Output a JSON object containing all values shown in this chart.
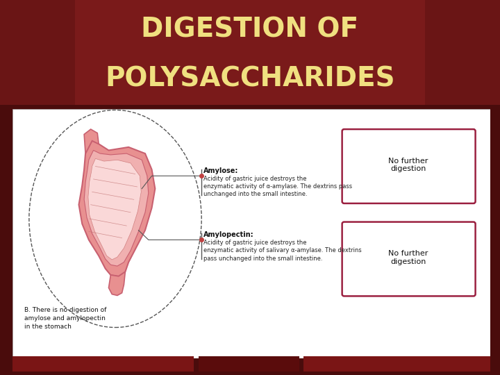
{
  "title_line1": "DIGESTION OF",
  "title_line2": "POLYSACCHARIDES",
  "title_color": "#F0E080",
  "title_fontsize": 28,
  "bg_color": "#4a0c0c",
  "box_border_color": "#9b2040",
  "amylose_label": "Amylose:",
  "amylose_text": "Acidity of gastric juice destroys the\nenzymatic activity of α-amylase. The dextrins pass\nunchanged into the small intestine.",
  "amylopectin_label": "Amylopectin:",
  "amylopectin_text": "Acidity of gastric juice destroys the\nenzymatic activity of salivary α-amylase. The dextrins\npass unchanged into the small intestine.",
  "nofurther": "No further\ndigestion",
  "bottom_note": "B. There is no digestion of\namylose and amylopectin\nin the stomach",
  "stomach_pink": "#e89090",
  "stomach_dark": "#c86070",
  "stomach_light": "#f0b0b0",
  "stomach_vlight": "#fad8d8"
}
